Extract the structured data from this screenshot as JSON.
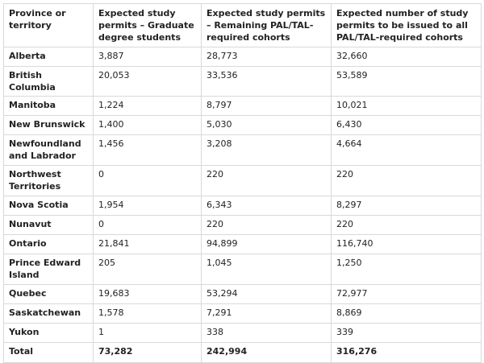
{
  "table": {
    "headers": [
      "Province or territory",
      "Expected study permits – Graduate degree students",
      "Expected study permits – Remaining PAL/TAL-required cohorts",
      "Expected number of study permits to be issued to all PAL/TAL-required cohorts"
    ],
    "rows": [
      {
        "province": "Alberta",
        "graduate": "3,887",
        "remaining": "28,773",
        "total": "32,660"
      },
      {
        "province": "British Columbia",
        "graduate": "20,053",
        "remaining": "33,536",
        "total": "53,589"
      },
      {
        "province": "Manitoba",
        "graduate": "1,224",
        "remaining": "8,797",
        "total": "10,021"
      },
      {
        "province": "New Brunswick",
        "graduate": "1,400",
        "remaining": "5,030",
        "total": "6,430"
      },
      {
        "province": "Newfoundland and Labrador",
        "graduate": "1,456",
        "remaining": "3,208",
        "total": "4,664"
      },
      {
        "province": "Northwest Territories",
        "graduate": "0",
        "remaining": "220",
        "total": "220"
      },
      {
        "province": "Nova Scotia",
        "graduate": "1,954",
        "remaining": "6,343",
        "total": "8,297"
      },
      {
        "province": "Nunavut",
        "graduate": "0",
        "remaining": "220",
        "total": "220"
      },
      {
        "province": "Ontario",
        "graduate": "21,841",
        "remaining": "94,899",
        "total": "116,740"
      },
      {
        "province": "Prince Edward Island",
        "graduate": "205",
        "remaining": "1,045",
        "total": "1,250"
      },
      {
        "province": "Quebec",
        "graduate": "19,683",
        "remaining": "53,294",
        "total": "72,977"
      },
      {
        "province": "Saskatchewan",
        "graduate": "1,578",
        "remaining": "7,291",
        "total": "8,869"
      },
      {
        "province": "Yukon",
        "graduate": "1",
        "remaining": "338",
        "total": "339"
      }
    ],
    "total_row": {
      "province": "Total",
      "graduate": "73,282",
      "remaining": "242,994",
      "total": "316,276"
    }
  }
}
